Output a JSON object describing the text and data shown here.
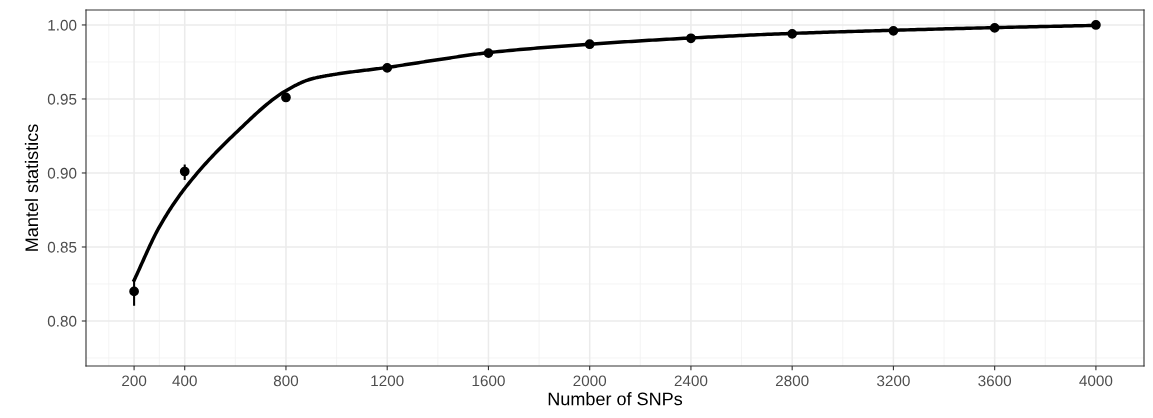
{
  "chart_data": {
    "type": "scatter",
    "xlabel": "Number of SNPs",
    "ylabel": "Mantel statistics",
    "xlim": [
      10,
      4190
    ],
    "ylim": [
      0.7696,
      1.0101
    ],
    "xticks": [
      200,
      400,
      800,
      1200,
      1600,
      2000,
      2400,
      2800,
      3200,
      3600,
      4000
    ],
    "yticks": [
      {
        "value": 0.8,
        "label": "0.80"
      },
      {
        "value": 0.85,
        "label": "0.85"
      },
      {
        "value": 0.9,
        "label": "0.90"
      },
      {
        "value": 0.95,
        "label": "0.95"
      },
      {
        "value": 1.0,
        "label": "1.00"
      }
    ],
    "grid": true,
    "series": [
      {
        "marker": "circle",
        "color": "#000000",
        "x": [
          200,
          400,
          800,
          1200,
          1600,
          2000,
          2400,
          2800,
          3200,
          3600,
          4000
        ],
        "values": [
          0.82,
          0.901,
          0.951,
          0.971,
          0.981,
          0.987,
          0.991,
          0.994,
          0.996,
          0.998,
          1.0
        ],
        "errors": [
          [
            0.811,
            0.828
          ],
          [
            0.896,
            0.905
          ],
          null,
          null,
          null,
          null,
          null,
          null,
          null,
          null,
          null
        ]
      },
      {
        "type": "line",
        "color": "#000000",
        "marker": "none",
        "x": [
          200,
          300,
          400,
          600,
          800,
          900,
          1000,
          1200,
          1400,
          1600,
          2000,
          2400,
          2800,
          3200,
          3600,
          4000
        ],
        "values": [
          0.8275,
          0.8636,
          0.8895,
          0.9268,
          0.9556,
          0.9635,
          0.9668,
          0.9713,
          0.9765,
          0.9813,
          0.987,
          0.9912,
          0.9943,
          0.9964,
          0.9982,
          0.9997
        ]
      }
    ]
  }
}
